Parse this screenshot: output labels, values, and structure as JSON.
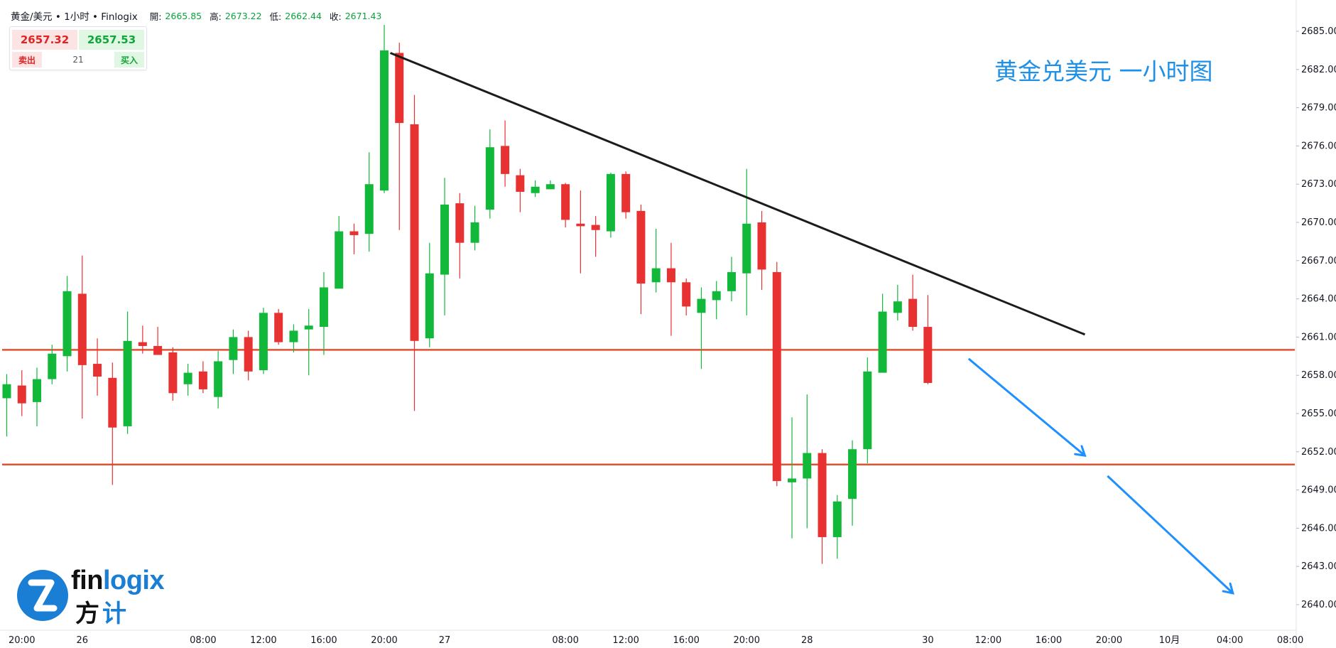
{
  "header": {
    "symbol": "黄金/美元",
    "sep1": "•",
    "timeframe": "1小时",
    "sep2": "•",
    "source": "Finlogix",
    "open_label": "開:",
    "open": "2665.85",
    "high_label": "高:",
    "high": "2673.22",
    "low_label": "低:",
    "low": "2662.44",
    "close_label": "收:",
    "close": "2671.43"
  },
  "trade": {
    "sell_price": "2657.32",
    "buy_price": "2657.53",
    "sell_label": "卖出",
    "spread": "21",
    "buy_label": "买入"
  },
  "annotation": {
    "title": "黄金兑美元 一小时图"
  },
  "logo": {
    "text_a": "fin",
    "text_b": "logix",
    "cn_a": "方",
    "cn_b": "计"
  },
  "colors": {
    "up": "#12b83a",
    "down": "#e83131",
    "resistance": "#e5502f",
    "trendline": "#1c1c1c",
    "arrow": "#1e90ff",
    "annotation": "#1e90e8"
  },
  "chart_data": {
    "type": "candlestick",
    "title": "",
    "xlabel": "",
    "ylabel": "",
    "ylim": [
      2638.5,
      2686
    ],
    "y_ticks": [
      2685,
      2682,
      2679,
      2676,
      2673,
      2670,
      2667,
      2664,
      2661,
      2658,
      2655,
      2652,
      2649,
      2646,
      2643,
      2640
    ],
    "x_tick_labels": [
      {
        "i": 1,
        "label": "20:00"
      },
      {
        "i": 5,
        "label": "26"
      },
      {
        "i": 13,
        "label": "08:00"
      },
      {
        "i": 17,
        "label": "12:00"
      },
      {
        "i": 21,
        "label": "16:00"
      },
      {
        "i": 25,
        "label": "20:00"
      },
      {
        "i": 29,
        "label": "27"
      },
      {
        "i": 37,
        "label": "08:00"
      },
      {
        "i": 41,
        "label": "12:00"
      },
      {
        "i": 45,
        "label": "16:00"
      },
      {
        "i": 49,
        "label": "20:00"
      },
      {
        "i": 53,
        "label": "28"
      },
      {
        "i": 61,
        "label": "30"
      },
      {
        "i": 65,
        "label": "12:00"
      },
      {
        "i": 69,
        "label": "16:00"
      },
      {
        "i": 73,
        "label": "20:00"
      },
      {
        "i": 77,
        "label": "10月"
      },
      {
        "i": 81,
        "label": "04:00"
      },
      {
        "i": 85,
        "label": "08:00"
      }
    ],
    "candles": [
      {
        "o": 2656.2,
        "h": 2658.1,
        "l": 2653.2,
        "c": 2657.3
      },
      {
        "o": 2657.2,
        "h": 2658.4,
        "l": 2654.8,
        "c": 2655.8
      },
      {
        "o": 2655.9,
        "h": 2658.6,
        "l": 2654.0,
        "c": 2657.7
      },
      {
        "o": 2657.7,
        "h": 2660.4,
        "l": 2657.3,
        "c": 2659.7
      },
      {
        "o": 2659.5,
        "h": 2665.8,
        "l": 2658.3,
        "c": 2664.6
      },
      {
        "o": 2664.4,
        "h": 2667.4,
        "l": 2654.6,
        "c": 2658.8
      },
      {
        "o": 2658.9,
        "h": 2660.9,
        "l": 2656.4,
        "c": 2657.9
      },
      {
        "o": 2657.8,
        "h": 2659.0,
        "l": 2649.4,
        "c": 2653.9
      },
      {
        "o": 2654.0,
        "h": 2663.0,
        "l": 2653.4,
        "c": 2660.7
      },
      {
        "o": 2660.6,
        "h": 2661.9,
        "l": 2659.7,
        "c": 2660.3
      },
      {
        "o": 2660.3,
        "h": 2661.8,
        "l": 2659.7,
        "c": 2659.6
      },
      {
        "o": 2659.8,
        "h": 2660.2,
        "l": 2656.0,
        "c": 2656.6
      },
      {
        "o": 2657.3,
        "h": 2658.9,
        "l": 2656.4,
        "c": 2658.2
      },
      {
        "o": 2658.3,
        "h": 2659.1,
        "l": 2656.6,
        "c": 2656.9
      },
      {
        "o": 2656.3,
        "h": 2659.9,
        "l": 2655.4,
        "c": 2659.1
      },
      {
        "o": 2659.2,
        "h": 2661.6,
        "l": 2658.1,
        "c": 2661.0
      },
      {
        "o": 2661.0,
        "h": 2661.5,
        "l": 2657.6,
        "c": 2658.3
      },
      {
        "o": 2658.4,
        "h": 2663.3,
        "l": 2658.1,
        "c": 2662.9
      },
      {
        "o": 2662.9,
        "h": 2663.2,
        "l": 2660.4,
        "c": 2660.6
      },
      {
        "o": 2660.6,
        "h": 2662.0,
        "l": 2659.8,
        "c": 2661.5
      },
      {
        "o": 2661.6,
        "h": 2663.2,
        "l": 2658.0,
        "c": 2661.9
      },
      {
        "o": 2661.8,
        "h": 2666.1,
        "l": 2659.6,
        "c": 2664.9
      },
      {
        "o": 2664.8,
        "h": 2670.5,
        "l": 2664.8,
        "c": 2669.3
      },
      {
        "o": 2669.3,
        "h": 2669.9,
        "l": 2667.5,
        "c": 2669.0
      },
      {
        "o": 2669.1,
        "h": 2675.5,
        "l": 2667.7,
        "c": 2673.0
      },
      {
        "o": 2672.5,
        "h": 2685.5,
        "l": 2672.3,
        "c": 2683.5
      },
      {
        "o": 2683.3,
        "h": 2684.1,
        "l": 2669.4,
        "c": 2677.8
      },
      {
        "o": 2677.7,
        "h": 2680.0,
        "l": 2655.2,
        "c": 2660.7
      },
      {
        "o": 2660.9,
        "h": 2668.4,
        "l": 2660.2,
        "c": 2666.0
      },
      {
        "o": 2665.9,
        "h": 2673.5,
        "l": 2662.7,
        "c": 2671.4
      },
      {
        "o": 2671.5,
        "h": 2672.3,
        "l": 2665.6,
        "c": 2668.4
      },
      {
        "o": 2668.4,
        "h": 2671.3,
        "l": 2667.8,
        "c": 2670.0
      },
      {
        "o": 2671.0,
        "h": 2677.3,
        "l": 2670.3,
        "c": 2675.9
      },
      {
        "o": 2676.0,
        "h": 2678.0,
        "l": 2672.8,
        "c": 2673.8
      },
      {
        "o": 2673.7,
        "h": 2674.2,
        "l": 2670.8,
        "c": 2672.4
      },
      {
        "o": 2672.3,
        "h": 2673.3,
        "l": 2672.0,
        "c": 2672.8
      },
      {
        "o": 2672.6,
        "h": 2673.3,
        "l": 2672.8,
        "c": 2673.0
      },
      {
        "o": 2673.0,
        "h": 2673.1,
        "l": 2669.6,
        "c": 2670.2
      },
      {
        "o": 2669.9,
        "h": 2672.5,
        "l": 2666.0,
        "c": 2669.7
      },
      {
        "o": 2669.8,
        "h": 2670.5,
        "l": 2667.3,
        "c": 2669.4
      },
      {
        "o": 2669.3,
        "h": 2673.9,
        "l": 2668.8,
        "c": 2673.8
      },
      {
        "o": 2673.8,
        "h": 2674.0,
        "l": 2670.3,
        "c": 2670.8
      },
      {
        "o": 2670.9,
        "h": 2671.4,
        "l": 2662.8,
        "c": 2665.2
      },
      {
        "o": 2665.3,
        "h": 2669.5,
        "l": 2664.5,
        "c": 2666.4
      },
      {
        "o": 2666.4,
        "h": 2668.4,
        "l": 2661.1,
        "c": 2665.3
      },
      {
        "o": 2665.3,
        "h": 2665.6,
        "l": 2662.7,
        "c": 2663.4
      },
      {
        "o": 2662.9,
        "h": 2664.9,
        "l": 2658.5,
        "c": 2664.0
      },
      {
        "o": 2663.9,
        "h": 2665.4,
        "l": 2662.4,
        "c": 2664.6
      },
      {
        "o": 2664.6,
        "h": 2667.3,
        "l": 2663.8,
        "c": 2666.1
      },
      {
        "o": 2666.0,
        "h": 2674.2,
        "l": 2662.7,
        "c": 2669.9
      },
      {
        "o": 2670.0,
        "h": 2670.9,
        "l": 2664.7,
        "c": 2666.3
      },
      {
        "o": 2666.1,
        "h": 2666.9,
        "l": 2649.3,
        "c": 2649.7
      },
      {
        "o": 2649.6,
        "h": 2654.7,
        "l": 2645.2,
        "c": 2649.9
      },
      {
        "o": 2649.9,
        "h": 2656.5,
        "l": 2646.0,
        "c": 2651.9
      },
      {
        "o": 2651.9,
        "h": 2652.2,
        "l": 2643.2,
        "c": 2645.3
      },
      {
        "o": 2645.3,
        "h": 2648.6,
        "l": 2643.6,
        "c": 2648.1
      },
      {
        "o": 2648.3,
        "h": 2652.9,
        "l": 2646.2,
        "c": 2652.2
      },
      {
        "o": 2652.2,
        "h": 2659.4,
        "l": 2651.1,
        "c": 2658.3
      },
      {
        "o": 2658.2,
        "h": 2664.4,
        "l": 2658.5,
        "c": 2663.0
      },
      {
        "o": 2662.9,
        "h": 2665.1,
        "l": 2662.3,
        "c": 2663.8
      },
      {
        "o": 2664.0,
        "h": 2665.9,
        "l": 2661.5,
        "c": 2661.8
      },
      {
        "o": 2661.8,
        "h": 2664.3,
        "l": 2657.3,
        "c": 2657.4
      }
    ],
    "horizontal_lines": [
      2660.0,
      2651.0
    ],
    "trendline": [
      {
        "i": 25.4,
        "y": 2683.3
      },
      {
        "i": 71.4,
        "y": 2661.2
      }
    ],
    "arrows": [
      {
        "from": {
          "i": 63.7,
          "y": 2659.3
        },
        "to": {
          "i": 71.4,
          "y": 2651.7
        }
      },
      {
        "from": {
          "i": 72.9,
          "y": 2650.1
        },
        "to": {
          "i": 81.2,
          "y": 2640.9
        }
      }
    ]
  }
}
